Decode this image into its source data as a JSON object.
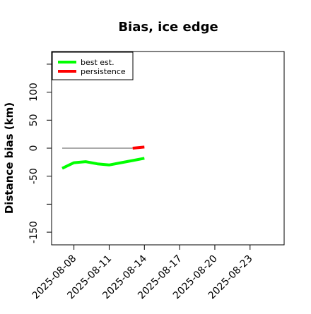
{
  "chart_data": {
    "type": "line",
    "title": "Bias, ice edge",
    "xlabel": "",
    "ylabel": "Distance bias (km)",
    "x_ticks": [
      "2025-08-08",
      "2025-08-11",
      "2025-08-14",
      "2025-08-17",
      "2025-08-20",
      "2025-08-23"
    ],
    "xlim": [
      "2025-08-07",
      "2025-08-25"
    ],
    "y_ticks": [
      -150,
      -50,
      0,
      50,
      100
    ],
    "y_tick_marks": [
      -150,
      -100,
      -50,
      0,
      50,
      100,
      150
    ],
    "ylim": [
      -160,
      160
    ],
    "grid": false,
    "legend_position": "top-left",
    "reference_line": {
      "y": 0,
      "x_start": "2025-08-07",
      "x_end": "2025-08-13",
      "color": "#555555"
    },
    "series": [
      {
        "name": "best est.",
        "color": "#00ff00",
        "x": [
          "2025-08-07",
          "2025-08-08",
          "2025-08-09",
          "2025-08-10",
          "2025-08-11",
          "2025-08-12",
          "2025-08-13",
          "2025-08-14"
        ],
        "values": [
          -36,
          -26,
          -24,
          -28,
          -30,
          -26,
          -22,
          -18
        ]
      },
      {
        "name": "persistence",
        "color": "#ff0000",
        "x": [
          "2025-08-13",
          "2025-08-14"
        ],
        "values": [
          0,
          2
        ]
      }
    ]
  }
}
